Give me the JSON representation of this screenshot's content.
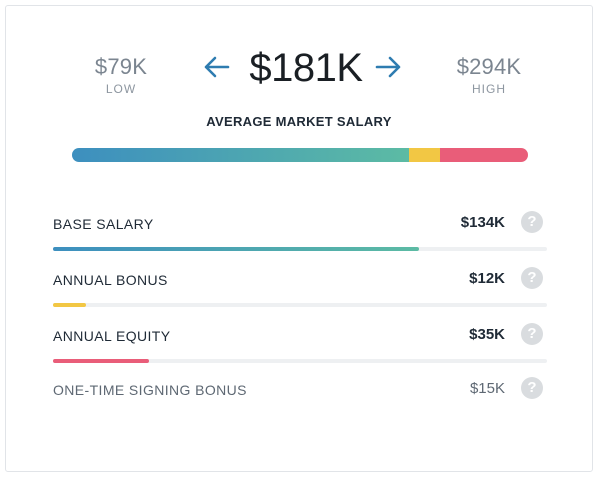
{
  "summary": {
    "low": {
      "value": "$79K",
      "caption": "LOW"
    },
    "high": {
      "value": "$294K",
      "caption": "HIGH"
    },
    "average": {
      "value": "$181K",
      "caption": "AVERAGE MARKET SALARY"
    },
    "prev_icon": "arrow-left",
    "next_icon": "arrow-right"
  },
  "composite_bar": {
    "segments": [
      {
        "name": "base",
        "fraction": 0.74,
        "color_start": "#3d8fbf",
        "color_end": "#5cbba4"
      },
      {
        "name": "bonus",
        "fraction": 0.066,
        "color_start": "#f2c744",
        "color_end": "#f2c744"
      },
      {
        "name": "equity",
        "fraction": 0.194,
        "color_start": "#e95d79",
        "color_end": "#e95d79"
      }
    ]
  },
  "components": [
    {
      "label": "BASE SALARY",
      "value": "$134K",
      "fraction": 0.74,
      "color_start": "#3d8fbf",
      "color_end": "#5cbba4",
      "help_icon": "question-icon"
    },
    {
      "label": "ANNUAL BONUS",
      "value": "$12K",
      "fraction": 0.066,
      "color_start": "#f2c744",
      "color_end": "#f2c744",
      "help_icon": "question-icon"
    },
    {
      "label": "ANNUAL EQUITY",
      "value": "$35K",
      "fraction": 0.194,
      "color_start": "#e95d79",
      "color_end": "#e95d79",
      "help_icon": "question-icon"
    },
    {
      "label": "ONE-TIME SIGNING BONUS",
      "value": "$15K",
      "fraction": 0,
      "color_start": "#cccccc",
      "color_end": "#cccccc",
      "help_icon": "question-icon",
      "muted": true
    }
  ],
  "help_glyph": "?"
}
